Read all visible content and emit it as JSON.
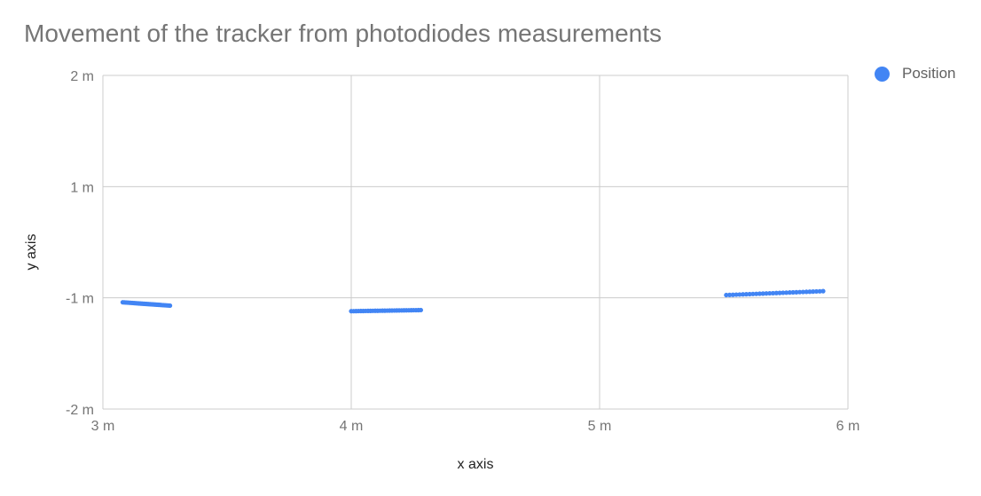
{
  "chart_data": {
    "type": "scatter",
    "title": "Movement of the tracker from photodiodes measurements",
    "xlabel": "x axis",
    "ylabel": "y axis",
    "x_ticks": [
      {
        "value": 3,
        "label": "3  m"
      },
      {
        "value": 4,
        "label": "4  m"
      },
      {
        "value": 5,
        "label": "5  m"
      },
      {
        "value": 6,
        "label": "6  m"
      }
    ],
    "y_ticks": [
      {
        "value": 2,
        "label": "2 m"
      },
      {
        "value": 1,
        "label": "1 m"
      },
      {
        "value": -1,
        "label": "-1 m"
      },
      {
        "value": -2,
        "label": "-2 m"
      }
    ],
    "xlim": [
      3,
      6
    ],
    "grid": true,
    "legend_position": "top-right",
    "series": [
      {
        "name": "Position",
        "color": "#4285f4",
        "segments": [
          {
            "x_start": 3.08,
            "y_start": -1.04,
            "x_end": 3.27,
            "y_end": -1.07
          },
          {
            "x_start": 4.0,
            "y_start": -1.12,
            "x_end": 4.28,
            "y_end": -1.11
          },
          {
            "x_start": 5.51,
            "y_start": -0.95,
            "x_end": 5.9,
            "y_end": -0.88
          }
        ],
        "points_per_segment": 30
      }
    ]
  }
}
